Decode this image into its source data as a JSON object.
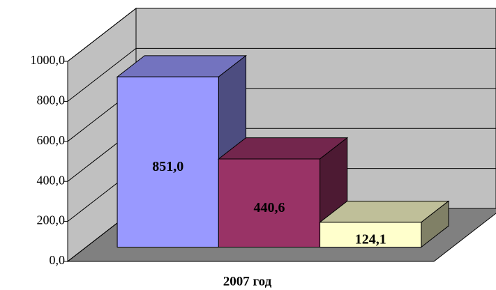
{
  "chart_data": {
    "type": "bar3d",
    "categories": [
      "2007 год"
    ],
    "series": [
      {
        "color": "#9999ff",
        "values": [
          851.0
        ],
        "value_labels": [
          "851,0"
        ]
      },
      {
        "color": "#993366",
        "values": [
          440.6
        ],
        "value_labels": [
          "440,6"
        ]
      },
      {
        "color": "#ffffcc",
        "values": [
          124.1
        ],
        "value_labels": [
          "124,1"
        ]
      }
    ],
    "ylim": [
      0,
      1000
    ],
    "yticks": [
      {
        "value": 0,
        "label": "0,0"
      },
      {
        "value": 200,
        "label": "200,0"
      },
      {
        "value": 400,
        "label": "400,0"
      },
      {
        "value": 600,
        "label": "600,0"
      },
      {
        "value": 800,
        "label": "800,0"
      },
      {
        "value": 1000,
        "label": "1000,0"
      }
    ],
    "grid": true
  }
}
